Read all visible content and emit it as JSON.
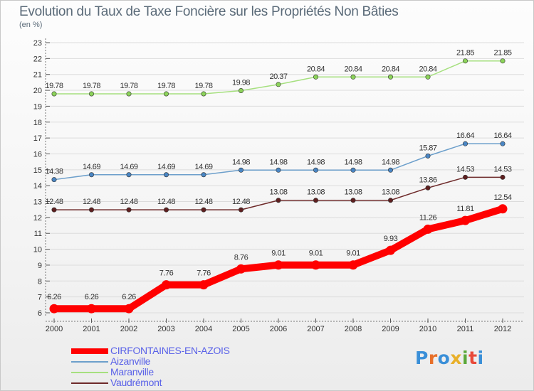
{
  "chart_data": {
    "type": "line",
    "title": "Evolution du Taux de Taxe Foncière sur les Propriétés Non Bâties",
    "subtitle": "(en %)",
    "x": [
      "2000",
      "2001",
      "2002",
      "2003",
      "2004",
      "2005",
      "2006",
      "2007",
      "2008",
      "2009",
      "2010",
      "2011",
      "2012"
    ],
    "ylim": [
      6,
      23
    ],
    "yticks": [
      6,
      7,
      8,
      9,
      10,
      11,
      12,
      13,
      14,
      15,
      16,
      17,
      18,
      19,
      20,
      21,
      22,
      23
    ],
    "grid": true,
    "legend_position": "bottom-left",
    "series": [
      {
        "name": "CIRFONTAINES-EN-AZOIS",
        "color": "#ff0000",
        "emphasis": true,
        "values": [
          6.26,
          6.26,
          6.26,
          7.76,
          7.76,
          8.76,
          9.01,
          9.01,
          9.01,
          9.93,
          11.26,
          11.81,
          12.54
        ],
        "labels": [
          "6.26",
          "6.26",
          "6.26",
          "7.76",
          "7.76",
          "8.76",
          "9.01",
          "9.01",
          "9.01",
          "9.93",
          "11.26",
          "11.81",
          "12.54"
        ]
      },
      {
        "name": "Aizanville",
        "color": "#6c9fcb",
        "marker": "#4a86c4",
        "values": [
          14.38,
          14.69,
          14.69,
          14.69,
          14.69,
          14.98,
          14.98,
          14.98,
          14.98,
          14.98,
          15.87,
          16.64,
          16.64
        ],
        "labels": [
          "14.38",
          "14.69",
          "14.69",
          "14.69",
          "14.69",
          "14.98",
          "14.98",
          "14.98",
          "14.98",
          "14.98",
          "15.87",
          "16.64",
          "16.64"
        ]
      },
      {
        "name": "Maranville",
        "color": "#a6e07f",
        "marker": "#8cd35a",
        "values": [
          19.78,
          19.78,
          19.78,
          19.78,
          19.78,
          19.98,
          20.37,
          20.84,
          20.84,
          20.84,
          20.84,
          21.85,
          21.85
        ],
        "labels": [
          "19.78",
          "19.78",
          "19.78",
          "19.78",
          "19.78",
          "19.98",
          "20.37",
          "20.84",
          "20.84",
          "20.84",
          "20.84",
          "21.85",
          "21.85"
        ]
      },
      {
        "name": "Vaudrémont",
        "color": "#6e2a2a",
        "marker": "#5e1f1f",
        "values": [
          12.48,
          12.48,
          12.48,
          12.48,
          12.48,
          12.48,
          13.08,
          13.08,
          13.08,
          13.08,
          13.86,
          14.53,
          14.53
        ],
        "labels": [
          "12.48",
          "12.48",
          "12.48",
          "12.48",
          "12.48",
          "12.48",
          "13.08",
          "13.08",
          "13.08",
          "13.08",
          "13.86",
          "14.53",
          "14.53"
        ]
      }
    ]
  },
  "logo": {
    "letters": [
      "P",
      "r",
      "o",
      "x",
      "i",
      "t",
      "i"
    ],
    "colors": [
      "#3a8fd8",
      "#e8702a",
      "#3a8fd8",
      "#e8b02a",
      "#5aa83a",
      "#e84a3a",
      "#3a8fd8"
    ]
  }
}
